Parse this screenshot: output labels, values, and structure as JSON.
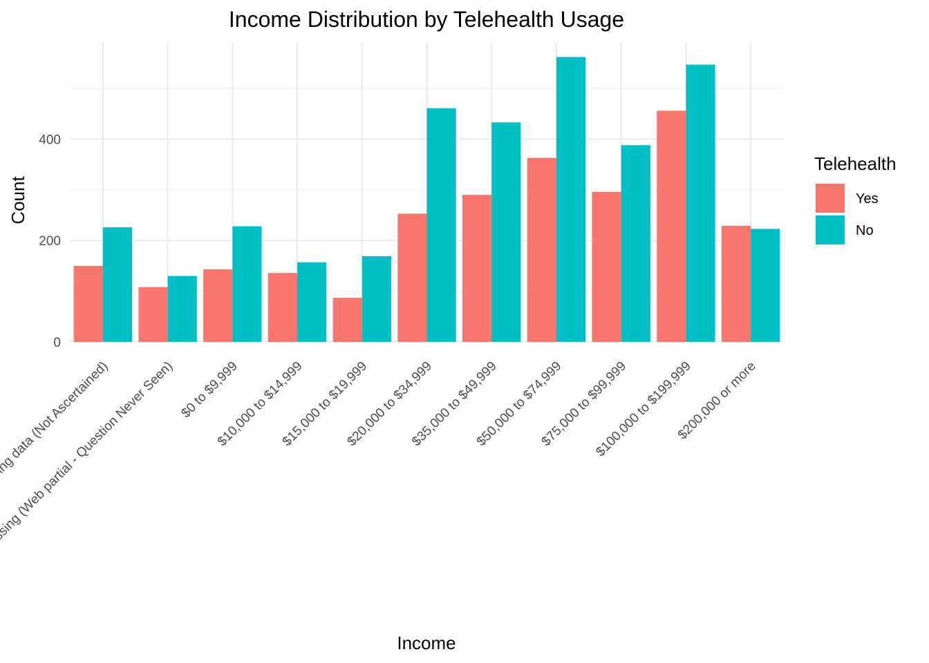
{
  "chart_data": {
    "type": "bar",
    "title": "Income Distribution by Telehealth Usage",
    "xlabel": "Income",
    "ylabel": "Count",
    "categories": [
      "Missing data (Not Ascertained)",
      "Missing (Web partial - Question Never Seen)",
      "$0 to $9,999",
      "$10,000 to $14,999",
      "$15,000 to $19,999",
      "$20,000 to $34,999",
      "$35,000 to $49,999",
      "$50,000 to $74,999",
      "$75,000 to $99,999",
      "$100,000 to $199,999",
      "$200,000 or more"
    ],
    "series": [
      {
        "name": "Yes",
        "color": "#F8766D",
        "values": [
          150,
          108,
          143,
          136,
          87,
          253,
          290,
          363,
          296,
          456,
          229
        ]
      },
      {
        "name": "No",
        "color": "#00BFC4",
        "values": [
          226,
          130,
          228,
          157,
          169,
          461,
          433,
          562,
          388,
          547,
          223
        ]
      }
    ],
    "ylim": [
      0,
      590
    ],
    "yticks": [
      0,
      200,
      400
    ],
    "grid": true,
    "legend": {
      "title": "Telehealth",
      "position": "right"
    }
  }
}
